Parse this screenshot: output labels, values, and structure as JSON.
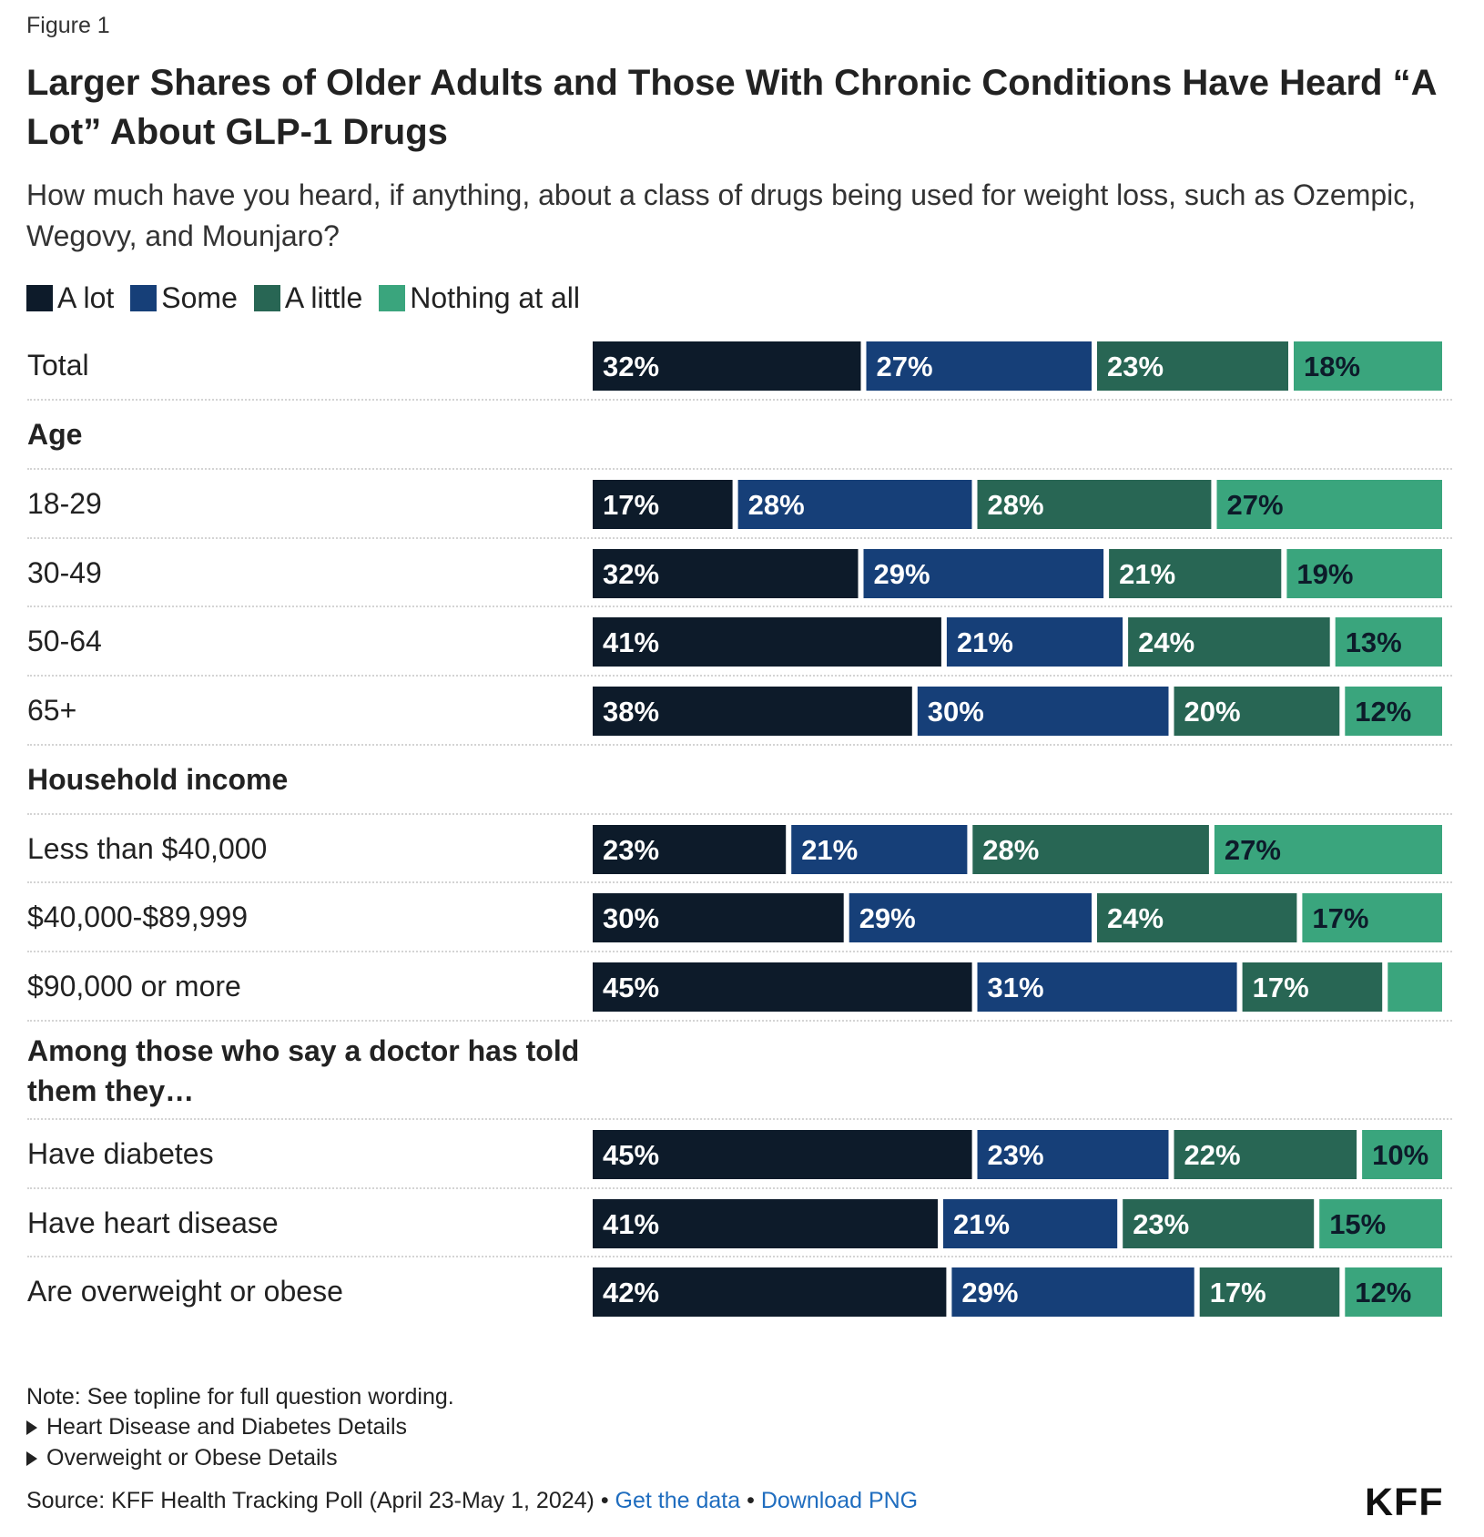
{
  "figure_label": "Figure 1",
  "title": "Larger Shares of Older Adults and Those With Chronic Conditions Have Heard “A Lot” About GLP-1 Drugs",
  "subtitle": "How much have you heard, if anything, about a class of drugs being used for weight loss, such as Ozempic, Wegovy, and Mounjaro?",
  "colors": {
    "a_lot": "#0d1b2a",
    "some": "#163f78",
    "a_little": "#286654",
    "nothing": "#3aa57d"
  },
  "chart_data": {
    "type": "bar",
    "orientation": "horizontal",
    "stacked": true,
    "legend": [
      "A lot",
      "Some",
      "A little",
      "Nothing at all"
    ],
    "legend_position": "top-left",
    "groups": [
      {
        "heading": "",
        "rows": [
          {
            "label": "Total",
            "values": [
              32,
              27,
              23,
              18
            ],
            "labels": [
              "32%",
              "27%",
              "23%",
              "18%"
            ]
          }
        ]
      },
      {
        "heading": "Age",
        "rows": [
          {
            "label": "18-29",
            "values": [
              17,
              28,
              28,
              27
            ],
            "labels": [
              "17%",
              "28%",
              "28%",
              "27%"
            ]
          },
          {
            "label": "30-49",
            "values": [
              32,
              29,
              21,
              19
            ],
            "labels": [
              "32%",
              "29%",
              "21%",
              "19%"
            ]
          },
          {
            "label": "50-64",
            "values": [
              41,
              21,
              24,
              13
            ],
            "labels": [
              "41%",
              "21%",
              "24%",
              "13%"
            ]
          },
          {
            "label": "65+",
            "values": [
              38,
              30,
              20,
              12
            ],
            "labels": [
              "38%",
              "30%",
              "20%",
              "12%"
            ]
          }
        ]
      },
      {
        "heading": "Household income",
        "rows": [
          {
            "label": "Less than $40,000",
            "values": [
              23,
              21,
              28,
              27
            ],
            "labels": [
              "23%",
              "21%",
              "28%",
              "27%"
            ]
          },
          {
            "label": "$40,000-$89,999",
            "values": [
              30,
              29,
              24,
              17
            ],
            "labels": [
              "30%",
              "29%",
              "24%",
              "17%"
            ]
          },
          {
            "label": "$90,000 or more",
            "values": [
              45,
              31,
              17,
              7
            ],
            "labels": [
              "45%",
              "31%",
              "17%",
              ""
            ]
          }
        ]
      },
      {
        "heading": "Among those who say a doctor has told them they…",
        "rows": [
          {
            "label": "Have diabetes",
            "values": [
              45,
              23,
              22,
              10
            ],
            "labels": [
              "45%",
              "23%",
              "22%",
              "10%"
            ]
          },
          {
            "label": "Have heart disease",
            "values": [
              41,
              21,
              23,
              15
            ],
            "labels": [
              "41%",
              "21%",
              "23%",
              "15%"
            ]
          },
          {
            "label": "Are overweight or obese",
            "values": [
              42,
              29,
              17,
              12
            ],
            "labels": [
              "42%",
              "29%",
              "17%",
              "12%"
            ]
          }
        ]
      }
    ],
    "xlim": [
      0,
      100
    ]
  },
  "notes": {
    "note": "Note: See topline for full question wording.",
    "details": [
      "Heart Disease and Diabetes Details",
      "Overweight or Obese Details"
    ]
  },
  "footer": {
    "source": "Source: KFF Health Tracking Poll (April 23-May 1, 2024)",
    "separator": "•",
    "get_data": "Get the data",
    "download": "Download PNG",
    "logo": "KFF"
  }
}
